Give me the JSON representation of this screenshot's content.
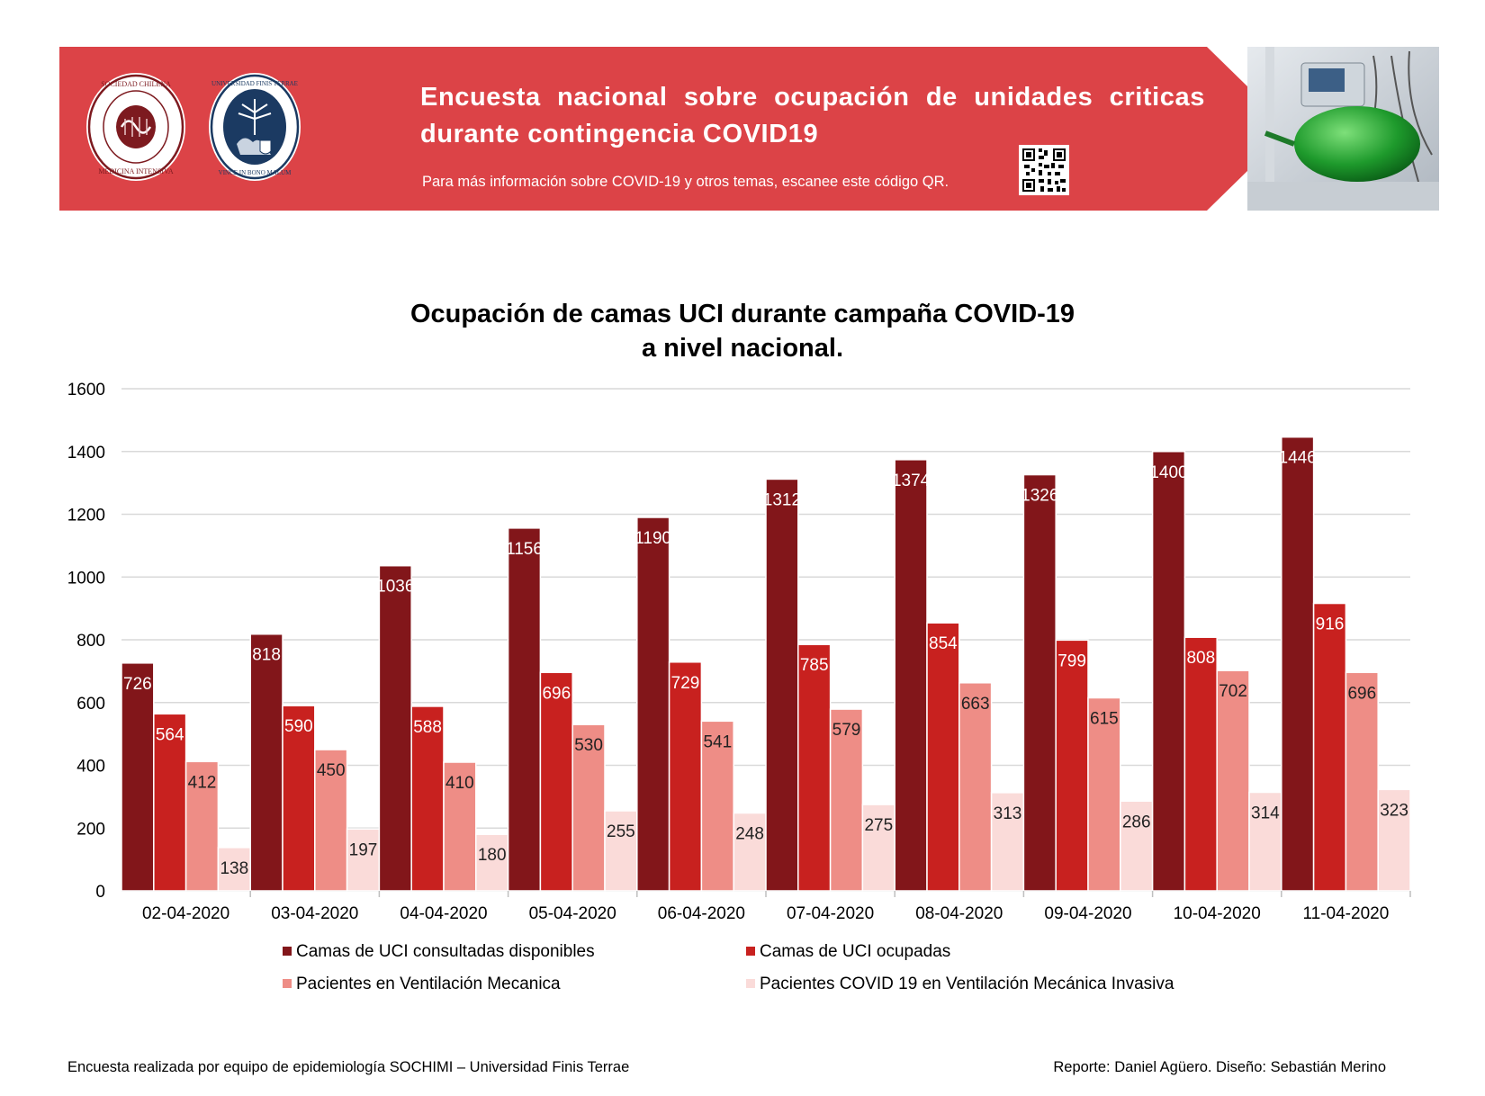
{
  "header": {
    "title": "Encuesta nacional sobre ocupación de unidades criticas durante contingencia COVID19",
    "note": "Para más información sobre COVID-19 y otros temas, escanee este código QR.",
    "logos": {
      "sochimi_text": "SOCIEDAD CHILENA DE MEDICINA INTENSIVA",
      "finis_text": "UNIVERSIDAD FINIS TERRAE · VINCE IN BONO MALUM"
    },
    "colors": {
      "banner": "#dc4347",
      "logo_red": "#7d1a1f",
      "logo_blue": "#1b3a62"
    }
  },
  "chart_data": {
    "type": "bar",
    "title_line1": "Ocupación de camas UCI durante campaña COVID-19",
    "title_line2": "a nivel nacional.",
    "categories": [
      "02-04-2020",
      "03-04-2020",
      "04-04-2020",
      "05-04-2020",
      "06-04-2020",
      "07-04-2020",
      "08-04-2020",
      "09-04-2020",
      "10-04-2020",
      "11-04-2020"
    ],
    "series": [
      {
        "name": "Camas de UCI consultadas disponibles",
        "color": "#82161a",
        "label_color": "#ffffff",
        "values": [
          726,
          818,
          1036,
          1156,
          1190,
          1312,
          1374,
          1326,
          1400,
          1446
        ]
      },
      {
        "name": "Camas de UCI ocupadas",
        "color": "#c8211f",
        "label_color": "#ffffff",
        "values": [
          564,
          590,
          588,
          696,
          729,
          785,
          854,
          799,
          808,
          916
        ]
      },
      {
        "name": "Pacientes en Ventilación Mecanica",
        "color": "#ee8d86",
        "label_color": "#222222",
        "values": [
          412,
          450,
          410,
          530,
          541,
          579,
          663,
          615,
          702,
          696
        ]
      },
      {
        "name": "Pacientes COVID 19 en Ventilación Mecánica Invasiva",
        "color": "#fadbd9",
        "label_color": "#222222",
        "values": [
          138,
          197,
          180,
          255,
          248,
          275,
          313,
          286,
          314,
          323
        ]
      }
    ],
    "ylim": [
      0,
      1600
    ],
    "yticks": [
      0,
      200,
      400,
      600,
      800,
      1000,
      1200,
      1400,
      1600
    ],
    "grid": true,
    "legend_position": "bottom"
  },
  "footer": {
    "left": "Encuesta realizada por equipo de epidemiología SOCHIMI – Universidad Finis Terrae",
    "right": "Reporte: Daniel Agüero. Diseño: Sebastián Merino"
  }
}
